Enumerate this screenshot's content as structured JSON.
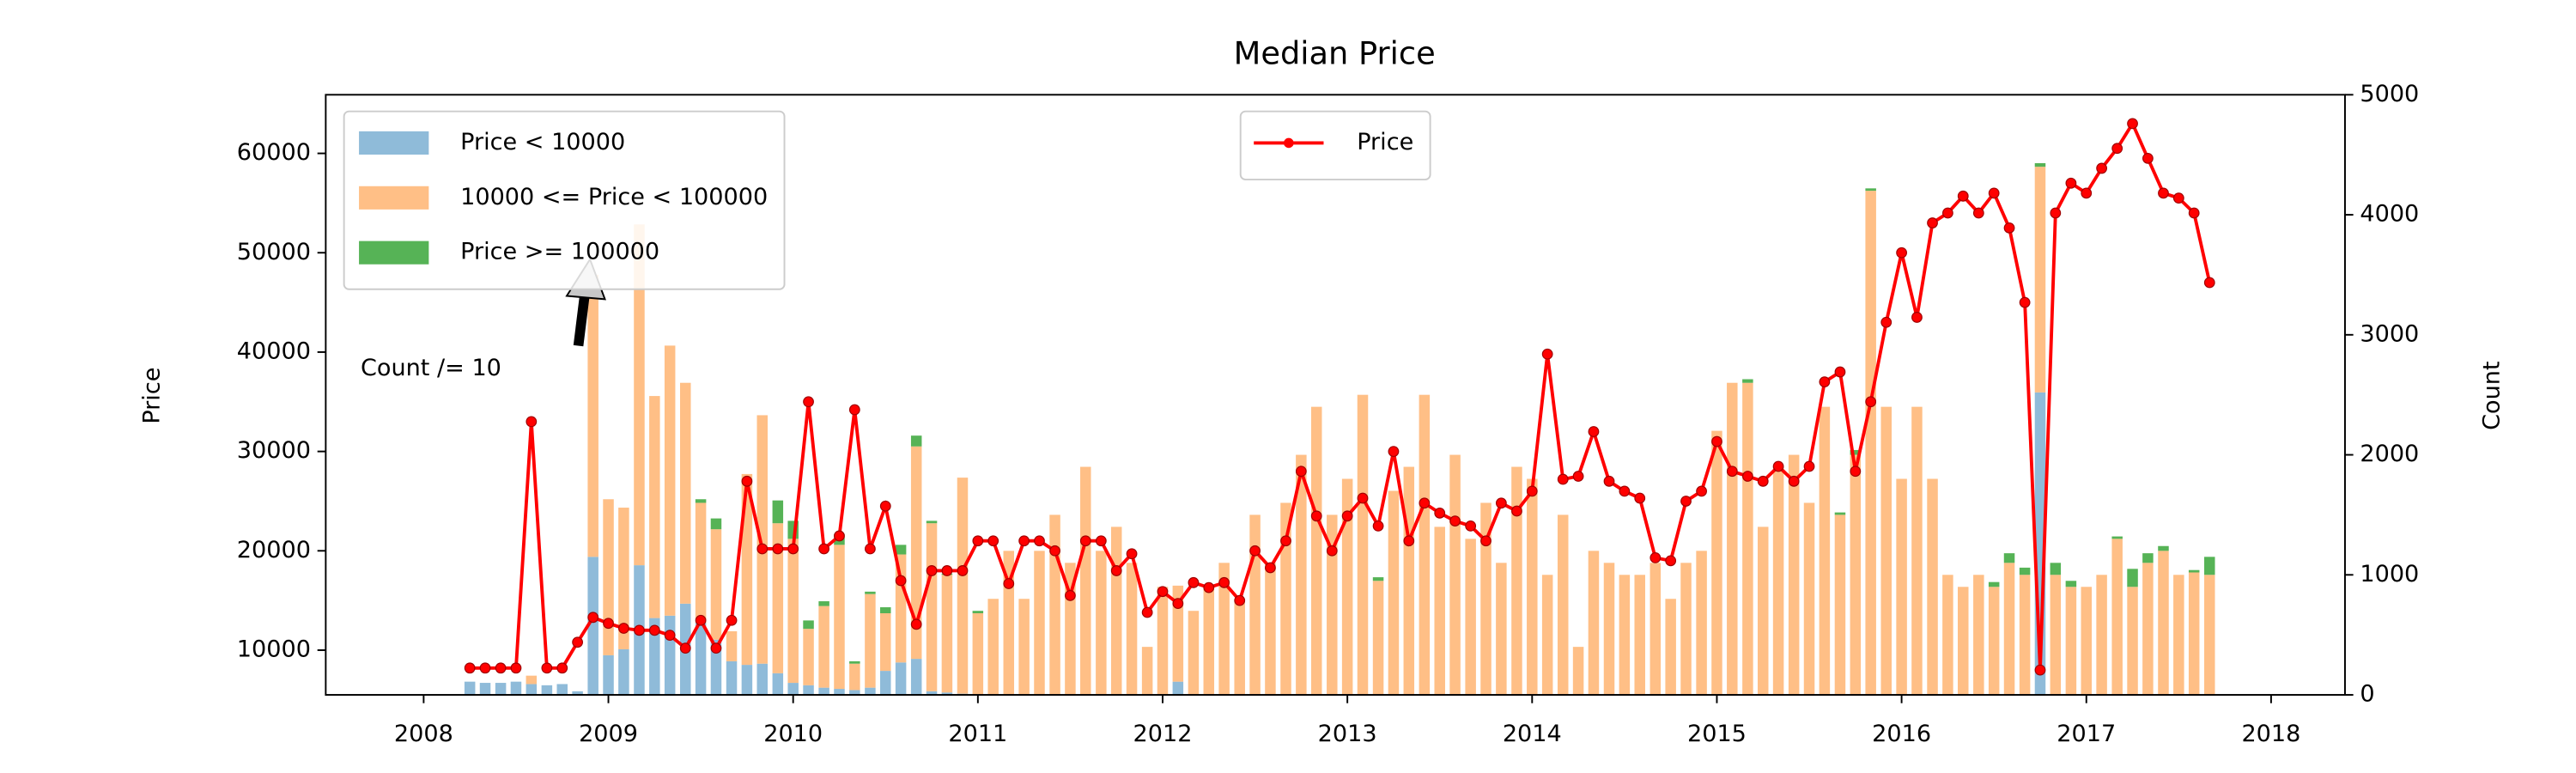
{
  "chart_data": {
    "type": "combo",
    "title": "Median Price",
    "ylabel": "Price",
    "y2label": "Count",
    "annotation": "Count /= 10",
    "x": [
      2008.25,
      2008.333,
      2008.417,
      2008.5,
      2008.583,
      2008.667,
      2008.75,
      2008.833,
      2008.917,
      2009,
      2009.083,
      2009.167,
      2009.25,
      2009.333,
      2009.417,
      2009.5,
      2009.583,
      2009.667,
      2009.75,
      2009.833,
      2009.917,
      2010,
      2010.083,
      2010.167,
      2010.25,
      2010.333,
      2010.417,
      2010.5,
      2010.583,
      2010.667,
      2010.75,
      2010.833,
      2010.917,
      2011,
      2011.083,
      2011.167,
      2011.25,
      2011.333,
      2011.417,
      2011.5,
      2011.583,
      2011.667,
      2011.75,
      2011.833,
      2011.917,
      2012,
      2012.083,
      2012.167,
      2012.25,
      2012.333,
      2012.417,
      2012.5,
      2012.583,
      2012.667,
      2012.75,
      2012.833,
      2012.917,
      2013,
      2013.083,
      2013.167,
      2013.25,
      2013.333,
      2013.417,
      2013.5,
      2013.583,
      2013.667,
      2013.75,
      2013.833,
      2013.917,
      2014,
      2014.083,
      2014.167,
      2014.25,
      2014.333,
      2014.417,
      2014.5,
      2014.583,
      2014.667,
      2014.75,
      2014.833,
      2014.917,
      2015,
      2015.083,
      2015.167,
      2015.25,
      2015.333,
      2015.417,
      2015.5,
      2015.583,
      2015.667,
      2015.75,
      2015.833,
      2015.917,
      2016,
      2016.083,
      2016.167,
      2016.25,
      2016.333,
      2016.417,
      2016.5,
      2016.583,
      2016.667,
      2016.75,
      2016.833,
      2016.917,
      2017,
      2017.083,
      2017.167,
      2017.25,
      2017.333,
      2017.417,
      2017.5,
      2017.583,
      2017.667
    ],
    "series": [
      {
        "name": "Price < 10000",
        "type": "bar",
        "axis": "y2",
        "color": "#8fbbd9",
        "values": [
          110,
          100,
          100,
          110,
          90,
          80,
          90,
          30,
          1150,
          330,
          380,
          1080,
          640,
          660,
          760,
          600,
          460,
          280,
          250,
          260,
          180,
          100,
          80,
          60,
          50,
          40,
          60,
          200,
          270,
          300,
          30,
          20,
          10,
          0,
          0,
          0,
          0,
          0,
          0,
          0,
          0,
          0,
          0,
          0,
          0,
          0,
          110,
          0,
          0,
          0,
          0,
          0,
          0,
          0,
          0,
          0,
          0,
          0,
          0,
          0,
          0,
          0,
          0,
          0,
          0,
          0,
          0,
          0,
          0,
          0,
          0,
          0,
          0,
          0,
          0,
          0,
          0,
          0,
          0,
          0,
          0,
          0,
          0,
          0,
          0,
          0,
          0,
          0,
          0,
          0,
          0,
          0,
          0,
          0,
          0,
          0,
          0,
          0,
          0,
          0,
          0,
          0,
          2520,
          0,
          0,
          0,
          0,
          0,
          0,
          0,
          0,
          0,
          0,
          0
        ]
      },
      {
        "name": "10000 <= Price < 100000",
        "type": "bar",
        "axis": "y2",
        "color": "#ffbf86",
        "values": [
          0,
          0,
          0,
          0,
          70,
          0,
          0,
          0,
          2350,
          1300,
          1180,
          2840,
          1850,
          2250,
          1840,
          1000,
          920,
          250,
          1590,
          2070,
          1250,
          1200,
          470,
          680,
          1200,
          220,
          780,
          480,
          900,
          1770,
          1400,
          980,
          1800,
          680,
          800,
          1200,
          800,
          1200,
          1500,
          1100,
          1900,
          1200,
          1400,
          1100,
          400,
          900,
          800,
          700,
          900,
          1100,
          800,
          1500,
          1100,
          1600,
          2000,
          2400,
          1500,
          1800,
          2500,
          950,
          1700,
          1900,
          2500,
          1400,
          2000,
          1300,
          1600,
          1100,
          1900,
          1800,
          1000,
          1500,
          400,
          1200,
          1100,
          1000,
          1000,
          1100,
          800,
          1100,
          1200,
          2200,
          2600,
          2600,
          1400,
          1900,
          2000,
          1600,
          2400,
          1500,
          2000,
          4200,
          2400,
          1800,
          2400,
          1800,
          1000,
          900,
          1000,
          900,
          1100,
          1000,
          1880,
          1000,
          900,
          900,
          1000,
          1300,
          900,
          1100,
          1200,
          1000,
          1020,
          1000
        ]
      },
      {
        "name": "Price >= 100000",
        "type": "bar",
        "axis": "y2",
        "color": "#56b356",
        "values": [
          0,
          0,
          0,
          0,
          0,
          0,
          0,
          0,
          0,
          0,
          0,
          0,
          0,
          0,
          0,
          30,
          90,
          0,
          0,
          0,
          190,
          150,
          70,
          40,
          90,
          20,
          20,
          50,
          80,
          90,
          20,
          10,
          0,
          20,
          0,
          0,
          0,
          0,
          0,
          0,
          0,
          0,
          0,
          0,
          0,
          0,
          0,
          0,
          0,
          0,
          0,
          0,
          0,
          0,
          0,
          0,
          0,
          0,
          0,
          30,
          0,
          0,
          0,
          0,
          0,
          0,
          0,
          0,
          0,
          0,
          0,
          0,
          0,
          0,
          0,
          0,
          0,
          0,
          0,
          0,
          0,
          0,
          0,
          30,
          0,
          0,
          0,
          0,
          0,
          20,
          40,
          20,
          0,
          0,
          0,
          0,
          0,
          0,
          0,
          40,
          80,
          60,
          30,
          100,
          50,
          0,
          0,
          20,
          150,
          80,
          40,
          0,
          20,
          150
        ]
      },
      {
        "name": "Price",
        "type": "line",
        "axis": "y",
        "color": "#ff0000",
        "values": [
          8200,
          8200,
          8200,
          8200,
          33000,
          8200,
          8200,
          10800,
          13300,
          12700,
          12200,
          12000,
          12000,
          11500,
          10200,
          13000,
          10200,
          13000,
          27000,
          20200,
          20200,
          20200,
          35000,
          20200,
          21500,
          34200,
          20200,
          24500,
          17000,
          12600,
          18000,
          18000,
          18000,
          21000,
          21000,
          16700,
          21000,
          21000,
          20000,
          15500,
          21000,
          21000,
          18000,
          19700,
          13800,
          15900,
          14700,
          16800,
          16300,
          16800,
          15000,
          20000,
          18300,
          21000,
          28000,
          23500,
          20000,
          23500,
          25300,
          22500,
          30000,
          21000,
          24800,
          23800,
          23000,
          22500,
          21000,
          24800,
          24000,
          26000,
          39800,
          27200,
          27500,
          32000,
          27000,
          26000,
          25300,
          19300,
          19000,
          25000,
          26000,
          31000,
          28000,
          27500,
          27000,
          28500,
          27000,
          28500,
          37000,
          38000,
          28000,
          35000,
          43000,
          50000,
          43500,
          53000,
          54000,
          55700,
          54000,
          56000,
          52500,
          45000,
          8000,
          54000,
          57000,
          56000,
          58500,
          60500,
          63000,
          59500,
          56000,
          55500,
          54000,
          47000
        ]
      }
    ],
    "xlim": [
      2007.47,
      2018.4
    ],
    "xticks": [
      2008,
      2009,
      2010,
      2011,
      2012,
      2013,
      2014,
      2015,
      2016,
      2017,
      2018
    ],
    "ylim": [
      5500,
      65900
    ],
    "yticks": [
      10000,
      20000,
      30000,
      40000,
      50000,
      60000
    ],
    "y2lim": [
      0,
      5000
    ],
    "y2ticks": [
      0,
      1000,
      2000,
      3000,
      4000,
      5000
    ],
    "legend": {
      "bar": "upper left",
      "line": "upper center"
    }
  }
}
